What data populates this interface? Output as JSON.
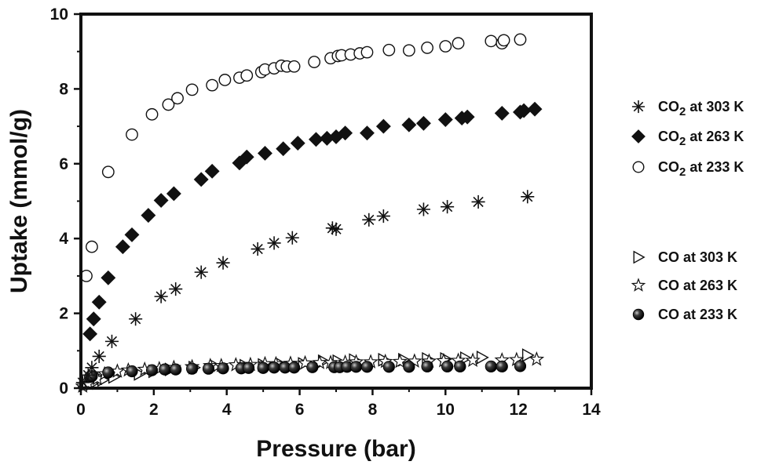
{
  "chart_data": {
    "type": "scatter",
    "title": "",
    "xlabel": "Pressure (bar)",
    "ylabel": "Uptake (mmol/g)",
    "xlim": [
      0,
      14
    ],
    "ylim": [
      0,
      10
    ],
    "xticks": [
      0,
      2,
      4,
      6,
      8,
      10,
      12,
      14
    ],
    "yticks": [
      0,
      2,
      4,
      6,
      8,
      10
    ],
    "grid": false,
    "legend_position": "right",
    "series": [
      {
        "name": "CO2 at 303 K",
        "label_parts": {
          "main": "CO",
          "sub": "2",
          "rest": " at 303 K"
        },
        "marker": "asterisk",
        "color": "#111111",
        "x": [
          0.05,
          0.2,
          0.3,
          0.5,
          0.85,
          1.5,
          2.2,
          2.6,
          3.3,
          3.9,
          4.85,
          5.3,
          5.8,
          6.9,
          7.0,
          7.9,
          8.3,
          9.4,
          10.05,
          10.9,
          12.25
        ],
        "y": [
          0.15,
          0.35,
          0.55,
          0.85,
          1.25,
          1.85,
          2.45,
          2.65,
          3.1,
          3.35,
          3.72,
          3.88,
          4.02,
          4.28,
          4.25,
          4.5,
          4.6,
          4.78,
          4.85,
          4.98,
          5.12
        ]
      },
      {
        "name": "CO2 at 263 K",
        "label_parts": {
          "main": "CO",
          "sub": "2",
          "rest": " at 263 K"
        },
        "marker": "diamond",
        "color": "#111111",
        "x": [
          0.25,
          0.35,
          0.5,
          0.75,
          1.15,
          1.4,
          1.85,
          2.2,
          2.55,
          3.3,
          3.6,
          4.35,
          4.55,
          5.05,
          5.55,
          5.95,
          6.45,
          6.75,
          7.0,
          7.25,
          7.85,
          8.3,
          9.0,
          9.4,
          10.0,
          10.45,
          10.6,
          11.55,
          12.05,
          12.15,
          12.45
        ],
        "y": [
          1.45,
          1.85,
          2.3,
          2.95,
          3.78,
          4.1,
          4.62,
          5.02,
          5.2,
          5.58,
          5.8,
          6.02,
          6.18,
          6.28,
          6.4,
          6.55,
          6.65,
          6.68,
          6.72,
          6.82,
          6.82,
          7.0,
          7.04,
          7.08,
          7.18,
          7.22,
          7.25,
          7.35,
          7.38,
          7.42,
          7.46
        ]
      },
      {
        "name": "CO2 at 233 K",
        "label_parts": {
          "main": "CO",
          "sub": "2",
          "rest": " at 233 K"
        },
        "marker": "circle-open",
        "color": "#111111",
        "x": [
          0.15,
          0.3,
          0.75,
          1.4,
          1.95,
          2.4,
          2.65,
          3.05,
          3.6,
          3.95,
          4.35,
          4.55,
          4.95,
          5.05,
          5.3,
          5.5,
          5.65,
          5.85,
          6.4,
          6.85,
          7.05,
          7.15,
          7.4,
          7.65,
          7.85,
          8.45,
          9.0,
          9.5,
          10.0,
          10.35,
          11.25,
          11.55,
          11.6,
          12.05
        ],
        "y": [
          3.0,
          3.78,
          5.78,
          6.78,
          7.32,
          7.58,
          7.75,
          7.98,
          8.1,
          8.24,
          8.3,
          8.36,
          8.45,
          8.52,
          8.55,
          8.62,
          8.6,
          8.6,
          8.72,
          8.82,
          8.88,
          8.9,
          8.92,
          8.95,
          8.98,
          9.04,
          9.03,
          9.1,
          9.14,
          9.22,
          9.28,
          9.22,
          9.3,
          9.32
        ]
      },
      {
        "name": "CO at 303 K",
        "label_parts": {
          "main": "CO",
          "sub": "",
          "rest": "  at 303 K"
        },
        "marker": "triangle-right",
        "color": "#111111",
        "x": [
          0.1,
          0.3,
          0.6,
          0.9,
          1.6,
          2.0,
          2.45,
          3.1,
          3.7,
          4.5,
          5.0,
          5.5,
          6.1,
          6.65,
          7.05,
          7.5,
          8.3,
          8.85,
          9.5,
          10.0,
          10.55,
          11.0,
          12.25
        ],
        "y": [
          0.08,
          0.12,
          0.22,
          0.3,
          0.38,
          0.45,
          0.5,
          0.55,
          0.58,
          0.6,
          0.62,
          0.63,
          0.65,
          0.72,
          0.72,
          0.75,
          0.76,
          0.76,
          0.78,
          0.78,
          0.8,
          0.82,
          0.88
        ]
      },
      {
        "name": "CO at 263 K",
        "label_parts": {
          "main": "CO",
          "sub": "",
          "rest": "  at 263 K"
        },
        "marker": "star",
        "color": "#111111",
        "x": [
          0.05,
          0.2,
          0.45,
          0.65,
          1.0,
          1.3,
          1.75,
          2.15,
          2.55,
          3.05,
          3.55,
          3.85,
          4.25,
          4.65,
          5.05,
          5.35,
          5.75,
          6.15,
          6.55,
          6.85,
          7.25,
          7.55,
          7.95,
          8.35,
          8.75,
          9.15,
          9.55,
          9.95,
          10.35,
          10.75,
          11.55,
          11.95,
          12.5
        ],
        "y": [
          0.05,
          0.12,
          0.25,
          0.38,
          0.45,
          0.48,
          0.5,
          0.52,
          0.55,
          0.57,
          0.6,
          0.6,
          0.62,
          0.63,
          0.65,
          0.65,
          0.66,
          0.67,
          0.68,
          0.68,
          0.69,
          0.7,
          0.7,
          0.71,
          0.71,
          0.72,
          0.72,
          0.73,
          0.74,
          0.74,
          0.75,
          0.76,
          0.77
        ]
      },
      {
        "name": "CO at 233 K",
        "label_parts": {
          "main": "CO",
          "sub": "",
          "rest": "  at 233 K"
        },
        "marker": "sphere",
        "color": "#111111",
        "x": [
          0.25,
          0.3,
          0.75,
          1.4,
          1.95,
          2.3,
          2.6,
          3.05,
          3.5,
          3.9,
          4.4,
          4.6,
          5.0,
          5.3,
          5.6,
          5.85,
          6.35,
          6.95,
          7.1,
          7.3,
          7.55,
          7.85,
          8.45,
          9.0,
          9.5,
          10.05,
          10.4,
          11.25,
          11.55,
          12.05
        ],
        "y": [
          0.3,
          0.32,
          0.42,
          0.45,
          0.48,
          0.5,
          0.5,
          0.52,
          0.52,
          0.53,
          0.53,
          0.54,
          0.54,
          0.55,
          0.55,
          0.55,
          0.56,
          0.56,
          0.56,
          0.57,
          0.57,
          0.57,
          0.57,
          0.57,
          0.58,
          0.58,
          0.58,
          0.58,
          0.58,
          0.59
        ]
      }
    ]
  }
}
